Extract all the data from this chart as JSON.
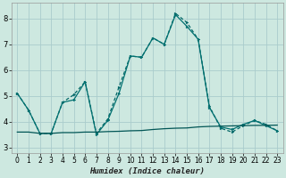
{
  "title": "",
  "xlabel": "Humidex (Indice chaleur)",
  "xlim": [
    -0.5,
    23.5
  ],
  "ylim": [
    2.8,
    8.6
  ],
  "yticks": [
    3,
    4,
    5,
    6,
    7,
    8
  ],
  "xticks": [
    0,
    1,
    2,
    3,
    4,
    5,
    6,
    7,
    8,
    9,
    10,
    11,
    12,
    13,
    14,
    15,
    16,
    17,
    18,
    19,
    20,
    21,
    22,
    23
  ],
  "bg_color": "#cde8e0",
  "grid_color": "#aacccc",
  "line_color1": "#006666",
  "line_color2": "#007070",
  "line_color3": "#005555",
  "line1_x": [
    0,
    1,
    2,
    3,
    4,
    5,
    6,
    7,
    8,
    9,
    10,
    11,
    12,
    13,
    14,
    15,
    16,
    17,
    18,
    19,
    20,
    21,
    22,
    23
  ],
  "line1_y": [
    5.1,
    4.45,
    3.55,
    3.55,
    4.75,
    5.05,
    5.55,
    3.55,
    4.1,
    5.35,
    6.55,
    6.5,
    7.25,
    7.0,
    8.2,
    7.85,
    7.2,
    4.6,
    3.75,
    3.6,
    3.85,
    4.05,
    3.9,
    3.65
  ],
  "line2_x": [
    0,
    1,
    2,
    3,
    4,
    5,
    6,
    7,
    8,
    9,
    10,
    11,
    12,
    13,
    14,
    15,
    16,
    17,
    18,
    19,
    20,
    21,
    22,
    23
  ],
  "line2_y": [
    5.1,
    4.45,
    3.55,
    3.55,
    4.75,
    4.85,
    5.55,
    3.5,
    4.05,
    5.1,
    6.55,
    6.5,
    7.25,
    7.0,
    8.15,
    7.7,
    7.2,
    4.55,
    3.8,
    3.7,
    3.9,
    4.05,
    3.85,
    3.65
  ],
  "line3_x": [
    0,
    1,
    2,
    3,
    4,
    5,
    6,
    7,
    8,
    9,
    10,
    11,
    12,
    13,
    14,
    15,
    16,
    17,
    18,
    19,
    20,
    21,
    22,
    23
  ],
  "line3_y": [
    3.6,
    3.6,
    3.55,
    3.55,
    3.58,
    3.58,
    3.6,
    3.6,
    3.62,
    3.63,
    3.65,
    3.66,
    3.7,
    3.73,
    3.75,
    3.76,
    3.8,
    3.82,
    3.83,
    3.84,
    3.85,
    3.86,
    3.86,
    3.87
  ]
}
